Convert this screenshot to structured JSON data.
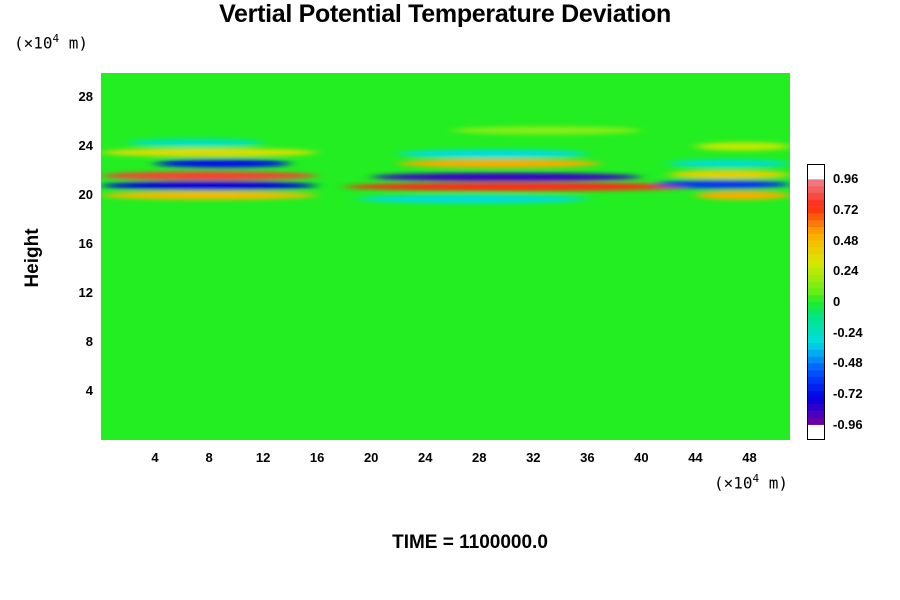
{
  "chart_data": {
    "type": "heatmap",
    "title": "Vertial Potential Temperature Deviation",
    "ylabel": "Height",
    "xlabel": "",
    "x_unit": "(×10",
    "x_unit_exp": "4",
    "x_unit_tail": " m)",
    "y_unit": "(×10",
    "y_unit_exp": "4",
    "y_unit_tail": " m)",
    "xlim": [
      0,
      51
    ],
    "ylim": [
      0,
      30
    ],
    "x_ticks": [
      "4",
      "8",
      "12",
      "16",
      "20",
      "24",
      "28",
      "32",
      "36",
      "40",
      "44",
      "48"
    ],
    "y_ticks": [
      "4",
      "8",
      "12",
      "16",
      "20",
      "24",
      "28"
    ],
    "colorbar": {
      "labels": [
        "0.96",
        "0.72",
        "0.48",
        "0.24",
        "0",
        "-0.24",
        "-0.48",
        "-0.72",
        "-0.96"
      ],
      "range": [
        -1.08,
        1.08
      ]
    },
    "bands": [
      {
        "y": 20.0,
        "x": [
          0,
          16
        ],
        "value": 0.55
      },
      {
        "y": 20.8,
        "x": [
          0,
          16
        ],
        "value": -0.85
      },
      {
        "y": 21.6,
        "x": [
          0,
          16
        ],
        "value": 0.9
      },
      {
        "y": 22.6,
        "x": [
          4,
          14
        ],
        "value": -0.8
      },
      {
        "y": 23.5,
        "x": [
          0,
          16
        ],
        "value": 0.4
      },
      {
        "y": 24.3,
        "x": [
          2,
          12
        ],
        "value": -0.25
      },
      {
        "y": 19.7,
        "x": [
          19,
          36
        ],
        "value": -0.35
      },
      {
        "y": 20.7,
        "x": [
          18,
          44
        ],
        "value": 0.85
      },
      {
        "y": 21.5,
        "x": [
          20,
          40
        ],
        "value": -0.95
      },
      {
        "y": 22.6,
        "x": [
          22,
          37
        ],
        "value": 0.6
      },
      {
        "y": 23.4,
        "x": [
          22,
          36
        ],
        "value": -0.35
      },
      {
        "y": 25.3,
        "x": [
          26,
          40
        ],
        "value": 0.15
      },
      {
        "y": 20.0,
        "x": [
          44,
          51
        ],
        "value": 0.6
      },
      {
        "y": 20.9,
        "x": [
          41,
          51
        ],
        "value": -0.7
      },
      {
        "y": 21.7,
        "x": [
          42,
          51
        ],
        "value": 0.45
      },
      {
        "y": 22.6,
        "x": [
          42,
          51
        ],
        "value": -0.3
      },
      {
        "y": 24.0,
        "x": [
          44,
          51
        ],
        "value": 0.3
      }
    ]
  },
  "footer": {
    "time_label": "TIME = 1100000.0"
  }
}
